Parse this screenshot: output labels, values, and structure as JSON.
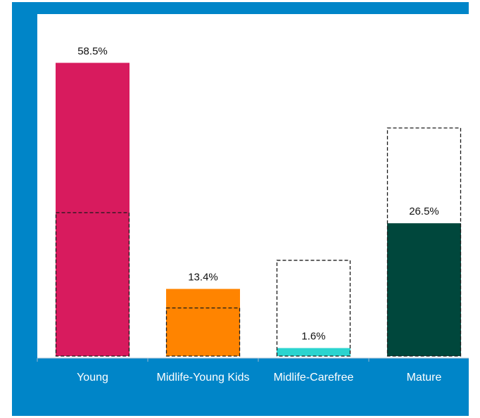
{
  "chart_data": {
    "type": "bar",
    "categories": [
      "Young",
      "Midlife-Young Kids",
      "Midlife-Carefree",
      "Mature"
    ],
    "series": [
      {
        "values": [
          58.5,
          13.4,
          1.6,
          26.5
        ],
        "colors": [
          "#d81b5e",
          "#ff8400",
          "#2bd4cf",
          "#00473c"
        ],
        "value_labels": [
          "58.5%",
          "13.4%",
          "1.6%",
          "26.5%"
        ]
      },
      {
        "style": "dashed-outline",
        "values": [
          28.6,
          9.6,
          19.1,
          45.5
        ]
      }
    ],
    "title": "",
    "xlabel": "",
    "ylabel": "",
    "ylim": [
      0,
      65
    ],
    "grid": false,
    "legend": "none",
    "background_color": "#0085c8"
  }
}
